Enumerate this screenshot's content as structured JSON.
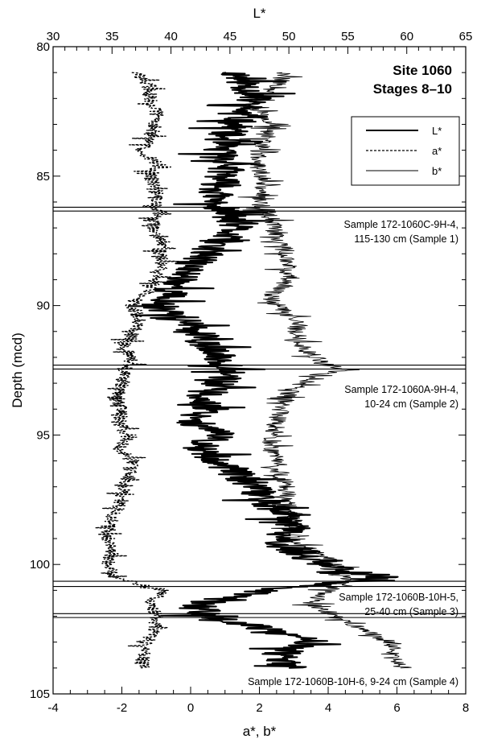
{
  "chart_data": {
    "type": "line",
    "title": [
      "Site 1060",
      "Stages 8–10"
    ],
    "top_axis": {
      "label": "L*",
      "range": [
        30,
        65
      ],
      "ticks": [
        30,
        35,
        40,
        45,
        50,
        55,
        60,
        65
      ]
    },
    "bottom_axis": {
      "label": "a*, b*",
      "range": [
        -4,
        8
      ],
      "ticks": [
        -4,
        -2,
        0,
        2,
        4,
        6,
        8
      ]
    },
    "y_axis": {
      "label": "Depth (mcd)",
      "range": [
        80,
        105
      ],
      "inverted": true,
      "ticks": [
        80,
        85,
        90,
        95,
        100,
        105
      ]
    },
    "legend": {
      "position": "top-right",
      "entries": [
        {
          "name": "L*",
          "style": "solid-thick"
        },
        {
          "name": "a*",
          "style": "dashed"
        },
        {
          "name": "b*",
          "style": "solid-thin"
        }
      ]
    },
    "series": [
      {
        "name": "L*",
        "axis": "top",
        "depth": [
          81.0,
          81.5,
          82.0,
          82.5,
          83.0,
          83.5,
          84.0,
          84.5,
          85.0,
          85.5,
          86.0,
          86.5,
          87.0,
          87.5,
          88.0,
          88.5,
          89.0,
          89.5,
          90.0,
          90.5,
          91.0,
          91.5,
          92.0,
          92.5,
          93.0,
          93.5,
          94.0,
          94.5,
          95.0,
          95.5,
          96.0,
          96.5,
          97.0,
          97.5,
          98.0,
          98.5,
          99.0,
          99.5,
          100.0,
          100.5,
          101.0,
          101.5,
          102.0,
          102.5,
          103.0,
          103.5,
          104.0
        ],
        "values": [
          45.5,
          46.5,
          47.0,
          46.0,
          45.5,
          44.5,
          44.0,
          45.0,
          44.5,
          44.0,
          43.5,
          45.0,
          45.5,
          44.0,
          43.0,
          41.5,
          41.0,
          40.0,
          39.0,
          41.0,
          42.0,
          43.0,
          44.0,
          45.5,
          44.0,
          42.5,
          43.5,
          42.0,
          44.0,
          42.5,
          44.0,
          45.5,
          47.0,
          48.0,
          49.0,
          50.5,
          49.0,
          50.5,
          53.0,
          58.0,
          48.0,
          42.5,
          43.0,
          48.0,
          52.0,
          49.0,
          50.0
        ]
      },
      {
        "name": "a*",
        "axis": "bottom",
        "depth": [
          81.0,
          81.5,
          82.0,
          82.5,
          83.0,
          83.5,
          84.0,
          84.5,
          85.0,
          85.5,
          86.0,
          86.5,
          87.0,
          87.5,
          88.0,
          88.5,
          89.0,
          89.5,
          90.0,
          90.5,
          91.0,
          91.5,
          92.0,
          92.5,
          93.0,
          93.5,
          94.0,
          94.5,
          95.0,
          95.5,
          96.0,
          96.5,
          97.0,
          97.5,
          98.0,
          98.5,
          99.0,
          99.5,
          100.0,
          100.5,
          101.0,
          101.5,
          102.0,
          102.5,
          103.0,
          103.5,
          104.0
        ],
        "values": [
          -1.6,
          -1.2,
          -1.2,
          -1.0,
          -1.0,
          -1.2,
          -1.4,
          -1.0,
          -1.2,
          -1.0,
          -1.0,
          -1.0,
          -1.1,
          -0.8,
          -0.9,
          -0.8,
          -1.0,
          -1.3,
          -1.7,
          -1.5,
          -1.6,
          -1.9,
          -1.7,
          -1.9,
          -2.0,
          -2.1,
          -2.0,
          -2.1,
          -1.8,
          -2.1,
          -1.7,
          -1.8,
          -1.9,
          -2.0,
          -2.2,
          -2.4,
          -2.4,
          -2.3,
          -2.4,
          -2.2,
          -0.8,
          -1.2,
          -1.0,
          -1.0,
          -1.3,
          -1.4,
          -1.4
        ]
      },
      {
        "name": "b*",
        "axis": "bottom",
        "depth": [
          81.0,
          81.5,
          82.0,
          82.5,
          83.0,
          83.5,
          84.0,
          84.5,
          85.0,
          85.5,
          86.0,
          86.5,
          87.0,
          87.5,
          88.0,
          88.5,
          89.0,
          89.5,
          90.0,
          90.5,
          91.0,
          91.5,
          92.0,
          92.5,
          93.0,
          93.5,
          94.0,
          94.5,
          95.0,
          95.5,
          96.0,
          96.5,
          97.0,
          97.5,
          98.0,
          98.5,
          99.0,
          99.5,
          100.0,
          100.5,
          101.0,
          101.5,
          102.0,
          102.5,
          103.0,
          103.5,
          104.0
        ],
        "values": [
          2.8,
          2.5,
          1.9,
          2.0,
          2.3,
          2.1,
          2.0,
          1.9,
          2.1,
          2.1,
          2.0,
          2.3,
          2.4,
          2.6,
          2.8,
          2.8,
          2.9,
          2.4,
          2.5,
          3.0,
          3.1,
          3.2,
          3.6,
          4.3,
          3.2,
          2.8,
          2.6,
          2.5,
          2.4,
          2.3,
          2.5,
          2.6,
          2.8,
          2.8,
          3.0,
          3.0,
          2.9,
          3.6,
          4.2,
          4.6,
          4.0,
          3.5,
          4.2,
          5.0,
          5.8,
          5.8,
          6.1
        ]
      }
    ],
    "boundaries": [
      {
        "depths": [
          86.2,
          86.35
        ],
        "label": [
          "Sample 172-1060C-9H-4,",
          "115-130 cm (Sample 1)"
        ]
      },
      {
        "depths": [
          92.3,
          92.45
        ],
        "label": [
          "Sample 172-1060A-9H-4,",
          "10-24 cm (Sample 2)"
        ]
      },
      {
        "depths": [
          100.65,
          100.85
        ],
        "label": [
          "Sample 172-1060B-10H-5,",
          "25-40 cm (Sample 3)"
        ]
      },
      {
        "depths": [
          101.9,
          102.05
        ],
        "label": [
          "Sample 172-1060B-10H-6, 9-24 cm (Sample 4)"
        ]
      }
    ]
  }
}
